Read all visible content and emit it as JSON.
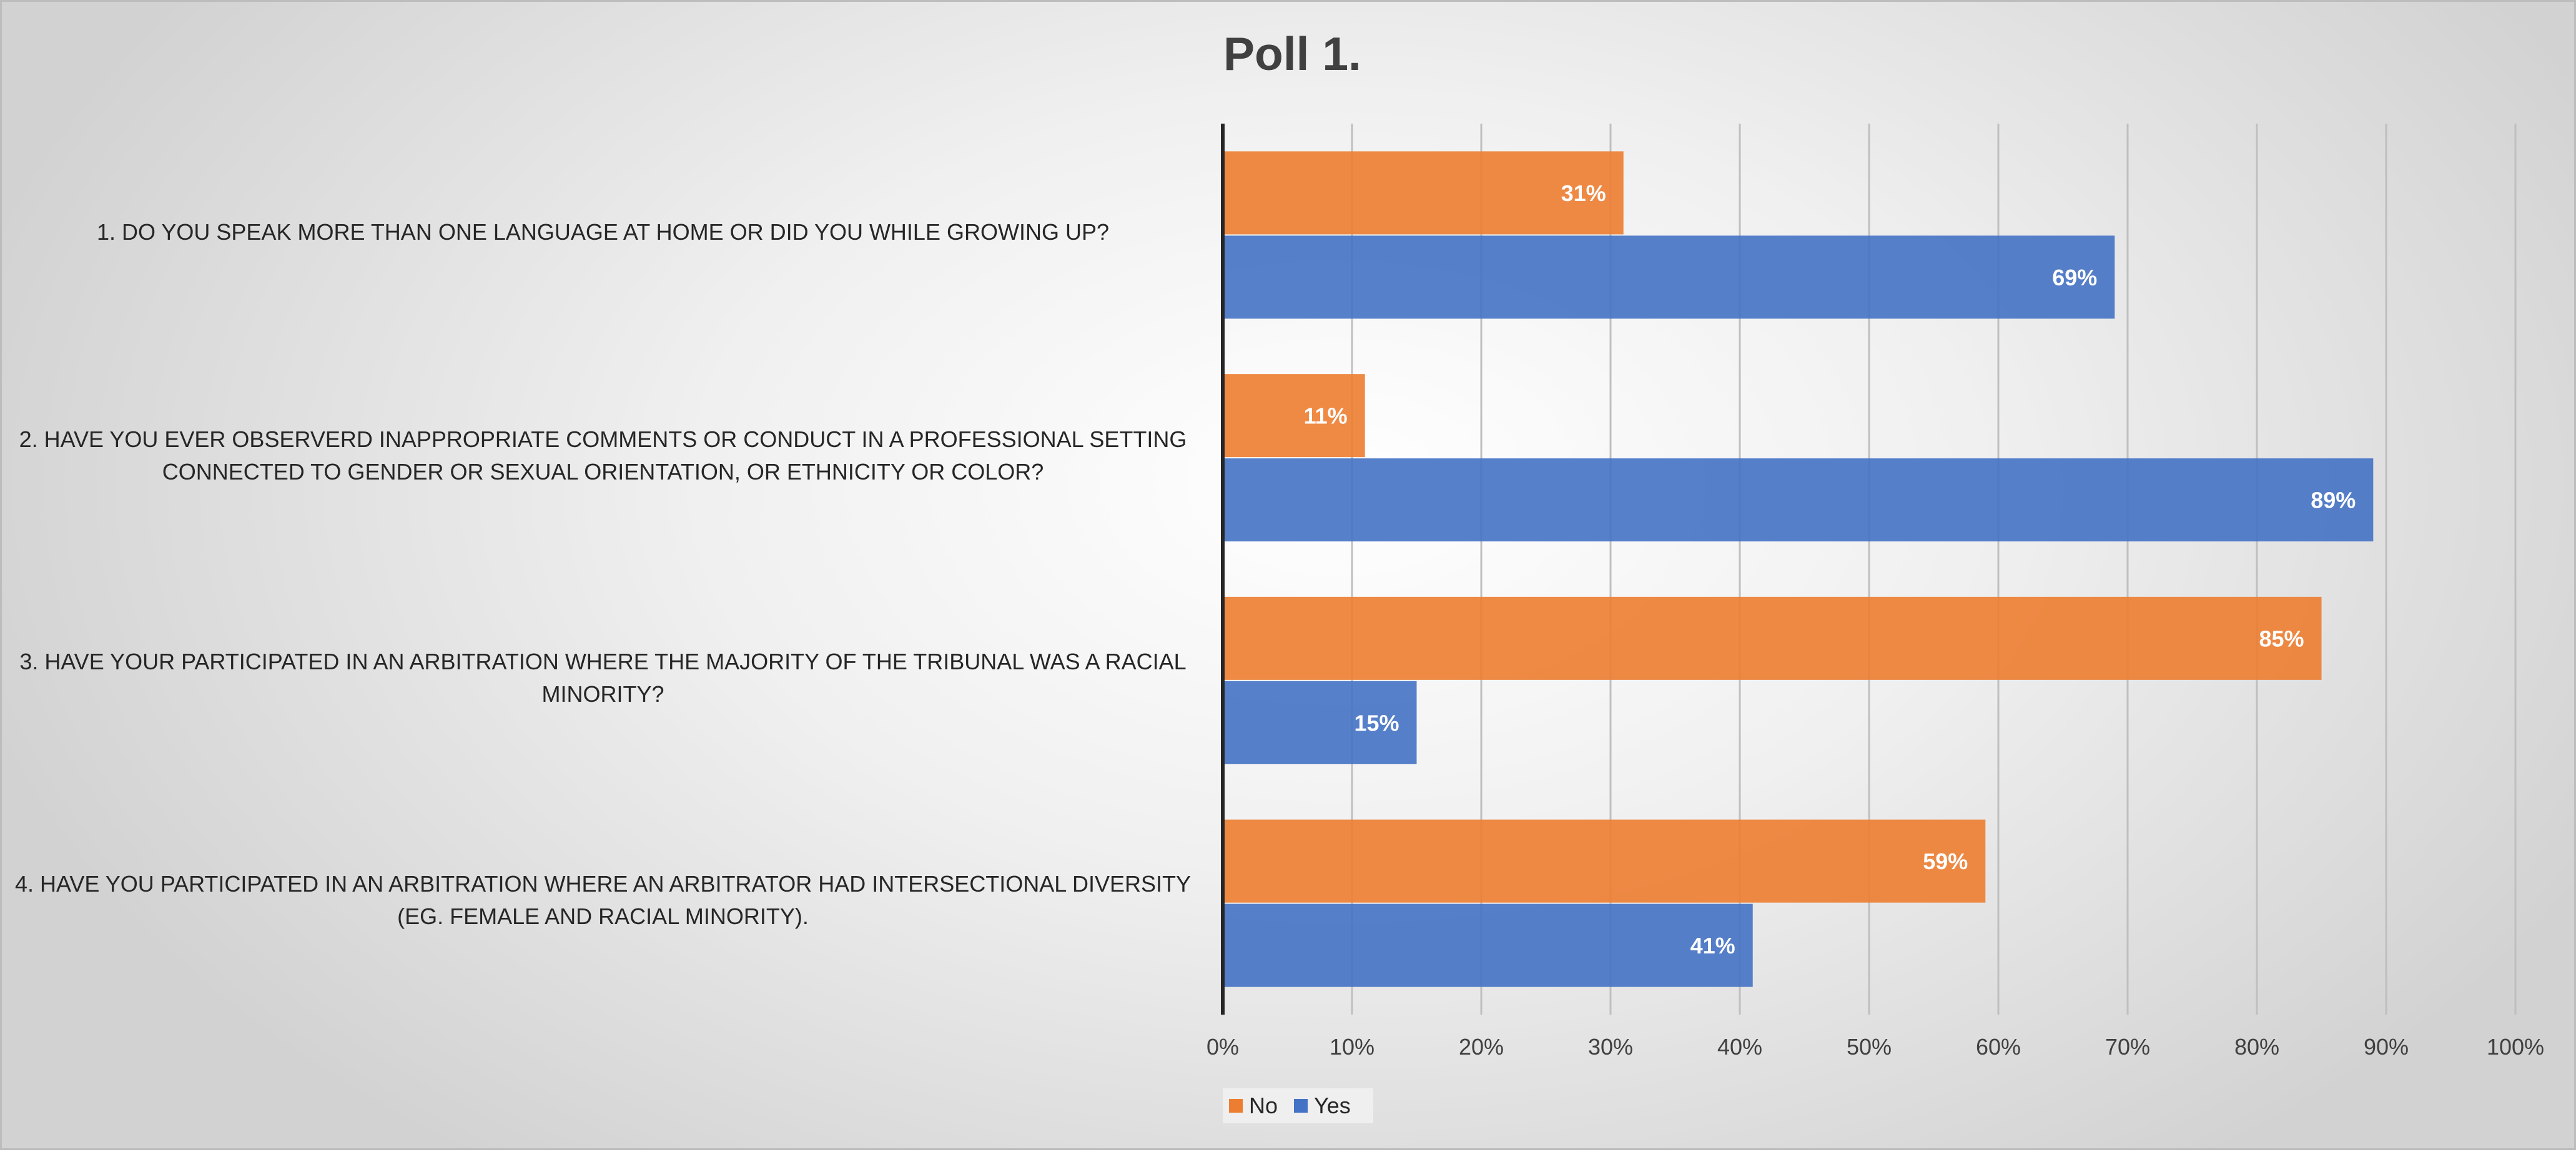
{
  "chart_data": {
    "type": "bar",
    "orientation": "horizontal",
    "title": "Poll 1.",
    "categories": [
      "1. DO YOU SPEAK MORE THAN ONE LANGUAGE AT HOME OR DID YOU WHILE GROWING UP?",
      "2. HAVE YOU EVER OBSERVERD INAPPROPRIATE COMMENTS OR CONDUCT IN A PROFESSIONAL SETTING CONNECTED TO GENDER OR SEXUAL ORIENTATION, OR ETHNICITY OR COLOR?",
      "3. HAVE YOUR PARTICIPATED IN AN ARBITRATION WHERE THE MAJORITY OF THE TRIBUNAL WAS A RACIAL MINORITY?",
      "4. HAVE YOU PARTICIPATED IN AN ARBITRATION WHERE AN ARBITRATOR HAD INTERSECTIONAL DIVERSITY (EG. FEMALE AND RACIAL MINORITY)."
    ],
    "series": [
      {
        "name": "No",
        "color": "#ED7D31",
        "values": [
          31,
          11,
          85,
          59
        ],
        "labels": [
          "31%",
          "11%",
          "85%",
          "59%"
        ]
      },
      {
        "name": "Yes",
        "color": "#4472C4",
        "values": [
          69,
          89,
          15,
          41
        ],
        "labels": [
          "69%",
          "89%",
          "15%",
          "41%"
        ]
      }
    ],
    "xlim": [
      0,
      100
    ],
    "xticks": [
      "0%",
      "10%",
      "20%",
      "30%",
      "40%",
      "50%",
      "60%",
      "70%",
      "80%",
      "90%",
      "100%"
    ],
    "xlabel": "",
    "ylabel": "",
    "grid": true,
    "legend": "bottom"
  }
}
